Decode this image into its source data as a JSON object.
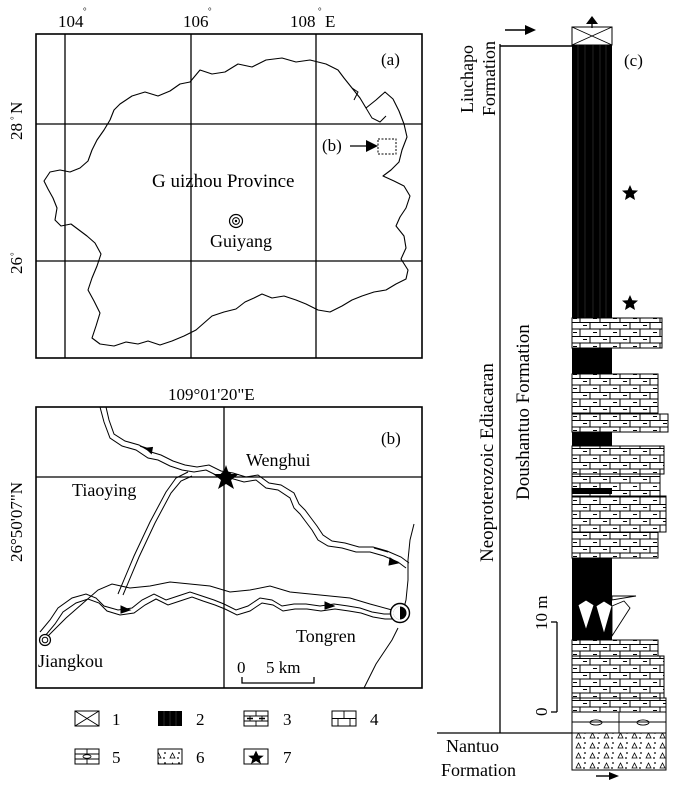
{
  "map_a": {
    "label": "(a)",
    "lon_ticks": [
      "104",
      "106",
      "108"
    ],
    "lon_suffix": "E",
    "lat_ticks": [
      "28",
      "26"
    ],
    "lat_suffix": "N",
    "degree_mark": "°",
    "province": "G uizhou Province",
    "capital": "Guiyang",
    "inset_ref": "(b)"
  },
  "map_b": {
    "label": "(b)",
    "lon_label": "109°01'20\"E",
    "lat_label": "26°50'07\"N",
    "places": {
      "wenghui": "Wenghui",
      "tiaoying": "Tiaoying",
      "jiangkou": "Jiangkou",
      "tongren": "Tongren"
    },
    "scale_zero": "0",
    "scale_len": "5 km"
  },
  "legend": [
    "1",
    "2",
    "3",
    "4",
    "5",
    "6",
    "7"
  ],
  "column": {
    "label": "(c)",
    "era": "Neoproterozoic Ediacaran",
    "top_unit_line1": "Liuchapo",
    "top_unit_line2": "Formation",
    "main_unit": "Doushantuo Formation",
    "base_unit_line1": "Nantuo",
    "base_unit_line2": "Formation",
    "scale_0": "0",
    "scale_10": "10 m"
  }
}
